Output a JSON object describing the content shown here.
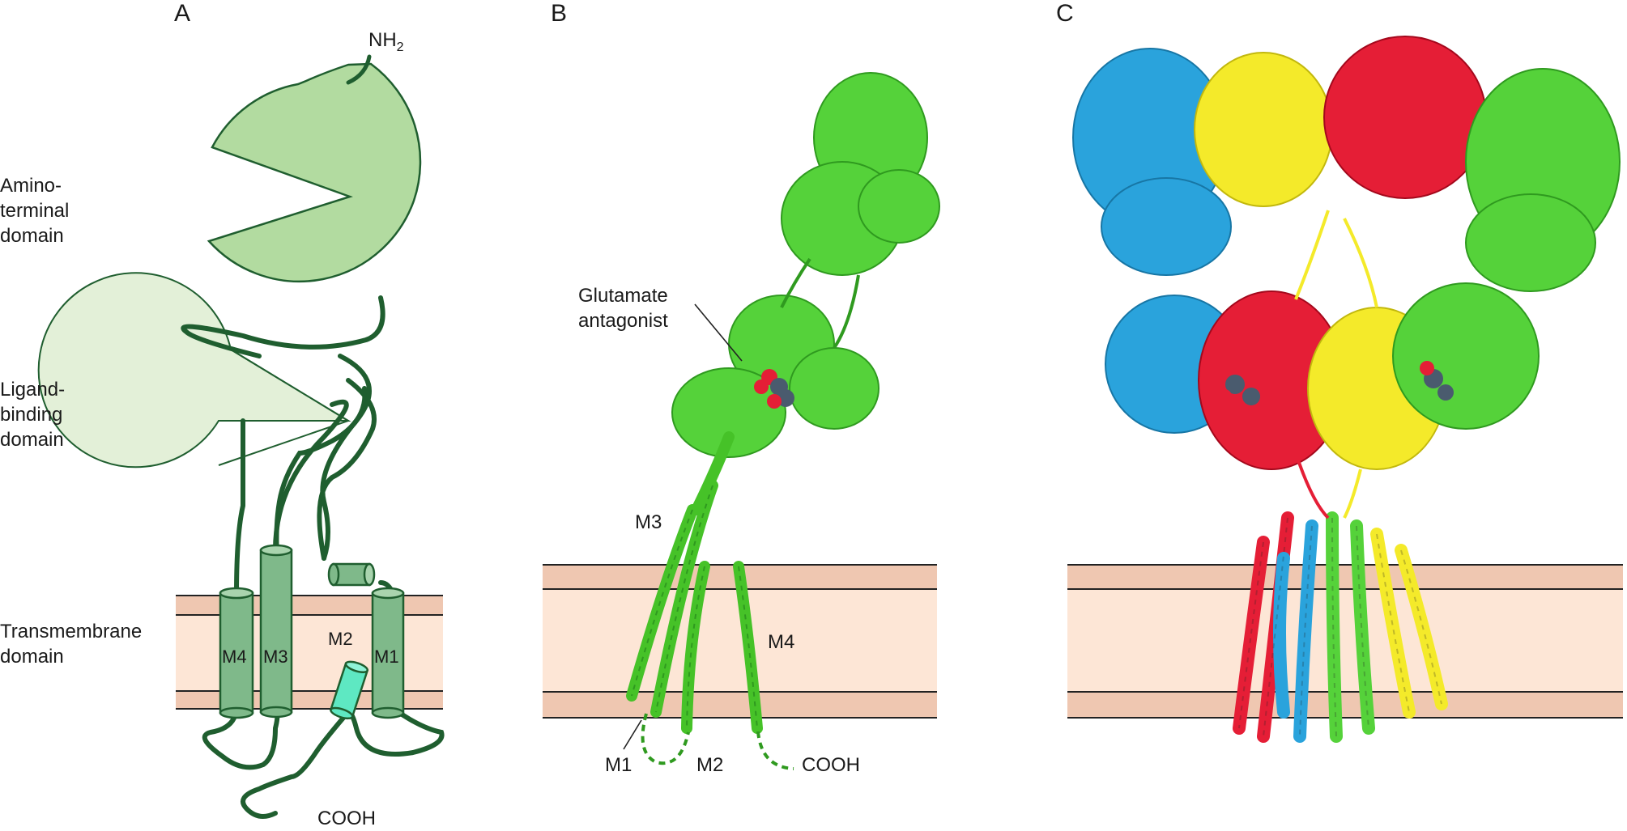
{
  "panels": {
    "a": {
      "letter": "A",
      "terminus_n_base": "NH",
      "terminus_n_sub": "2",
      "terminus_c": "COOH",
      "domain_labels": {
        "amino_terminal": [
          "Amino-",
          "terminal",
          "domain"
        ],
        "ligand_binding": [
          "Ligand-",
          "binding",
          "domain"
        ],
        "transmembrane": [
          "Transmembrane",
          "domain"
        ]
      },
      "helices": {
        "m4": "M4",
        "m3": "M3",
        "m2": "M2",
        "m1": "M1"
      }
    },
    "b": {
      "letter": "B",
      "antagonist_label": [
        "Glutamate",
        "antagonist"
      ],
      "helices": {
        "m3": "M3",
        "m4": "M4",
        "m1": "M1",
        "m2": "M2"
      },
      "terminus_c": "COOH"
    },
    "c": {
      "letter": "C"
    }
  },
  "colors": {
    "domain_fill": "#b2dba0",
    "ligand_fill": "#e3f0d8",
    "chain": "#1f5e2f",
    "helix_fill": "#7fb98a",
    "m2_fill": "#5ee8c2",
    "membrane_outer": "#efc7b1",
    "membrane_inner": "#fde6d6",
    "protein_green": "#55d23a",
    "subunit_blue": "#2aa3dc",
    "subunit_yellow": "#f4ea2a",
    "subunit_red": "#e51e36",
    "antagonist": "#4a5b6e"
  }
}
